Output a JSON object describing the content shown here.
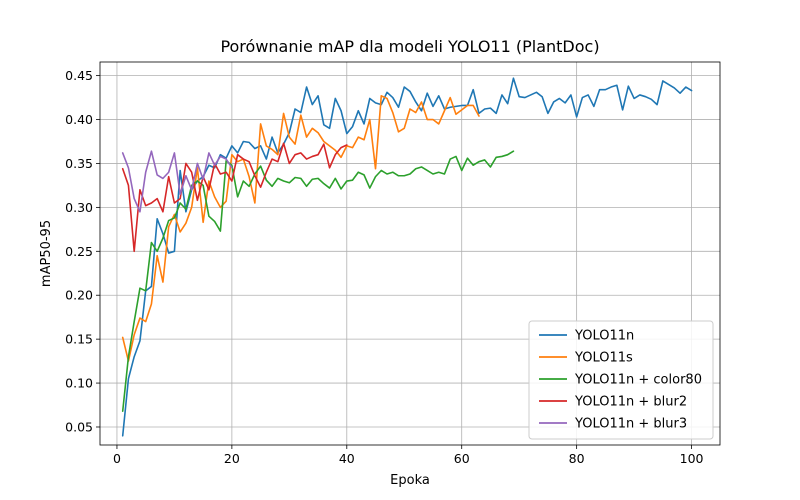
{
  "chart_data": {
    "type": "line",
    "title": "Porównanie mAP dla modeli YOLO11 (PlantDoc)",
    "xlabel": "Epoka",
    "ylabel": "mAP50-95",
    "xlim": [
      -2.95,
      104.95
    ],
    "ylim": [
      0.0295,
      0.4655
    ],
    "xticks": [
      0,
      20,
      40,
      60,
      80,
      100
    ],
    "xtick_labels": [
      "0",
      "20",
      "40",
      "60",
      "80",
      "100"
    ],
    "yticks": [
      0.05,
      0.1,
      0.15,
      0.2,
      0.25,
      0.3,
      0.35,
      0.4,
      0.45
    ],
    "ytick_labels": [
      "0.05",
      "0.10",
      "0.15",
      "0.20",
      "0.25",
      "0.30",
      "0.35",
      "0.40",
      "0.45"
    ],
    "grid": true,
    "legend_position": "lower-right",
    "series": [
      {
        "name": "YOLO11n",
        "color": "#1f77b4",
        "x_start": 1,
        "values": [
          0.04,
          0.105,
          0.13,
          0.148,
          0.205,
          0.21,
          0.287,
          0.27,
          0.248,
          0.25,
          0.342,
          0.295,
          0.32,
          0.33,
          0.335,
          0.348,
          0.345,
          0.36,
          0.356,
          0.37,
          0.362,
          0.375,
          0.374,
          0.367,
          0.37,
          0.355,
          0.38,
          0.362,
          0.372,
          0.385,
          0.412,
          0.408,
          0.437,
          0.417,
          0.427,
          0.394,
          0.39,
          0.424,
          0.41,
          0.384,
          0.392,
          0.41,
          0.395,
          0.424,
          0.419,
          0.417,
          0.431,
          0.425,
          0.414,
          0.437,
          0.432,
          0.42,
          0.41,
          0.43,
          0.415,
          0.427,
          0.412,
          0.414,
          0.415,
          0.416,
          0.416,
          0.434,
          0.407,
          0.412,
          0.413,
          0.407,
          0.428,
          0.418,
          0.447,
          0.426,
          0.425,
          0.428,
          0.431,
          0.426,
          0.407,
          0.42,
          0.424,
          0.419,
          0.428,
          0.403,
          0.425,
          0.428,
          0.415,
          0.434,
          0.434,
          0.437,
          0.439,
          0.411,
          0.438,
          0.424,
          0.428,
          0.426,
          0.423,
          0.417,
          0.444,
          0.44,
          0.436,
          0.43,
          0.437,
          0.433
        ]
      },
      {
        "name": "YOLO11s",
        "color": "#ff7f0e",
        "x_start": 1,
        "values": [
          0.152,
          0.125,
          0.155,
          0.174,
          0.17,
          0.19,
          0.245,
          0.215,
          0.278,
          0.292,
          0.272,
          0.282,
          0.3,
          0.345,
          0.283,
          0.33,
          0.312,
          0.3,
          0.307,
          0.36,
          0.352,
          0.355,
          0.335,
          0.305,
          0.395,
          0.37,
          0.366,
          0.36,
          0.407,
          0.38,
          0.372,
          0.405,
          0.38,
          0.39,
          0.385,
          0.375,
          0.37,
          0.365,
          0.357,
          0.37,
          0.368,
          0.38,
          0.377,
          0.4,
          0.344,
          0.427,
          0.424,
          0.408,
          0.386,
          0.39,
          0.412,
          0.408,
          0.42,
          0.4,
          0.4,
          0.395,
          0.41,
          0.425,
          0.406,
          0.411,
          0.416,
          0.416,
          0.404
        ]
      },
      {
        "name": "YOLO11n + color80",
        "color": "#2ca02c",
        "x_start": 1,
        "values": [
          0.068,
          0.13,
          0.17,
          0.208,
          0.205,
          0.26,
          0.25,
          0.265,
          0.285,
          0.288,
          0.305,
          0.298,
          0.325,
          0.33,
          0.325,
          0.29,
          0.284,
          0.273,
          0.353,
          0.348,
          0.312,
          0.33,
          0.324,
          0.338,
          0.347,
          0.331,
          0.324,
          0.333,
          0.33,
          0.328,
          0.334,
          0.333,
          0.324,
          0.332,
          0.333,
          0.327,
          0.322,
          0.333,
          0.321,
          0.33,
          0.331,
          0.34,
          0.337,
          0.322,
          0.335,
          0.342,
          0.338,
          0.34,
          0.336,
          0.336,
          0.338,
          0.344,
          0.346,
          0.342,
          0.338,
          0.34,
          0.338,
          0.355,
          0.358,
          0.342,
          0.356,
          0.348,
          0.352,
          0.354,
          0.346,
          0.357,
          0.358,
          0.36,
          0.364
        ]
      },
      {
        "name": "YOLO11n + blur2",
        "color": "#d62728",
        "x_start": 1,
        "values": [
          0.344,
          0.325,
          0.25,
          0.32,
          0.302,
          0.305,
          0.31,
          0.295,
          0.335,
          0.305,
          0.31,
          0.35,
          0.34,
          0.308,
          0.335,
          0.32,
          0.35,
          0.338,
          0.34,
          0.33,
          0.36,
          0.355,
          0.352,
          0.336,
          0.323,
          0.34,
          0.355,
          0.352,
          0.373,
          0.35,
          0.36,
          0.362,
          0.355,
          0.358,
          0.36,
          0.372,
          0.345,
          0.36,
          0.368,
          0.371
        ]
      },
      {
        "name": "YOLO11n + blur3",
        "color": "#9467bd",
        "x_start": 1,
        "values": [
          0.362,
          0.345,
          0.31,
          0.295,
          0.34,
          0.364,
          0.337,
          0.333,
          0.34,
          0.362,
          0.315,
          0.336,
          0.32,
          0.35,
          0.332,
          0.362,
          0.348,
          0.358,
          0.355,
          0.345
        ]
      }
    ]
  }
}
